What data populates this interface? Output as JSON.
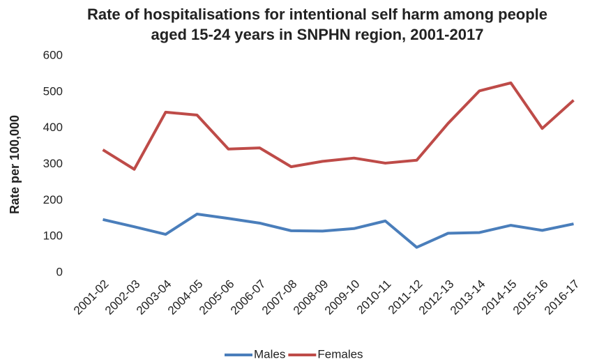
{
  "chart_data": {
    "type": "line",
    "title": "Rate of hospitalisations for intentional self harm among people aged 15-24 years in SNPHN region, 2001-2017",
    "y_label": "Rate per 100,000",
    "categories": [
      "2001-02",
      "2002-03",
      "2003-04",
      "2004-05",
      "2005-06",
      "2006-07",
      "2007-08",
      "2008-09",
      "2009-10",
      "2010-11",
      "2011-12",
      "2012-13",
      "2013-14",
      "2014-15",
      "2015-16",
      "2016-17"
    ],
    "series": [
      {
        "name": "Males",
        "color": "#4a7ebb",
        "values": [
          147,
          127,
          106,
          162,
          150,
          137,
          116,
          115,
          122,
          143,
          70,
          109,
          111,
          131,
          117,
          135
        ]
      },
      {
        "name": "Females",
        "color": "#be4b48",
        "values": [
          340,
          286,
          444,
          436,
          342,
          345,
          293,
          308,
          317,
          303,
          311,
          413,
          503,
          525,
          399,
          477
        ]
      }
    ],
    "ylim": [
      0,
      600
    ],
    "yticks": [
      0,
      100,
      200,
      300,
      400,
      500,
      600
    ],
    "grid": false,
    "legend": "bottom"
  }
}
